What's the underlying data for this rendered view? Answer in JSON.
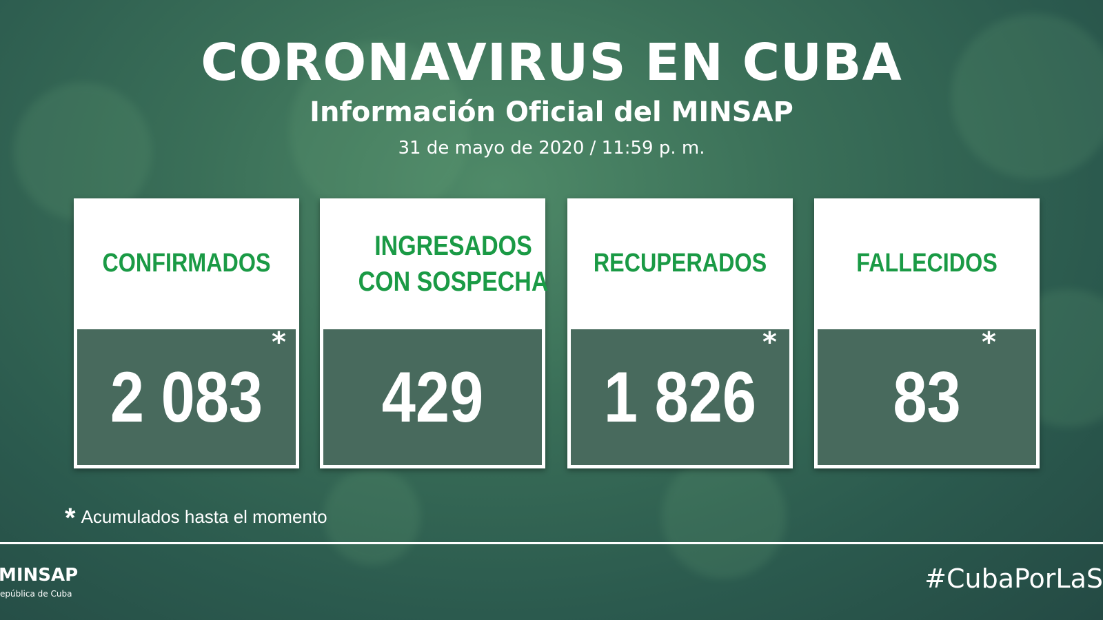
{
  "header": {
    "title": "CORONAVIRUS EN CUBA",
    "subtitle": "Información Oficial del MINSAP",
    "date": "31 de mayo de 2020 / 11:59 p. m."
  },
  "cards": [
    {
      "label": "CONFIRMADOS",
      "value": "2 083",
      "mark": "*"
    },
    {
      "label": "INGRESADOS CON SOSPECHA",
      "value": "429"
    },
    {
      "label": "RECUPERADOS",
      "value": "1 826",
      "mark": "*"
    },
    {
      "label": "FALLECIDOS",
      "value": "83",
      "mark": "*"
    }
  ],
  "footnote": {
    "mark": "*",
    "text": "Acumulados hasta el momento"
  },
  "footer": {
    "logo": "MINSAP",
    "logo_sub": "epública de Cuba",
    "hashtag": "#CubaPorLaS"
  }
}
